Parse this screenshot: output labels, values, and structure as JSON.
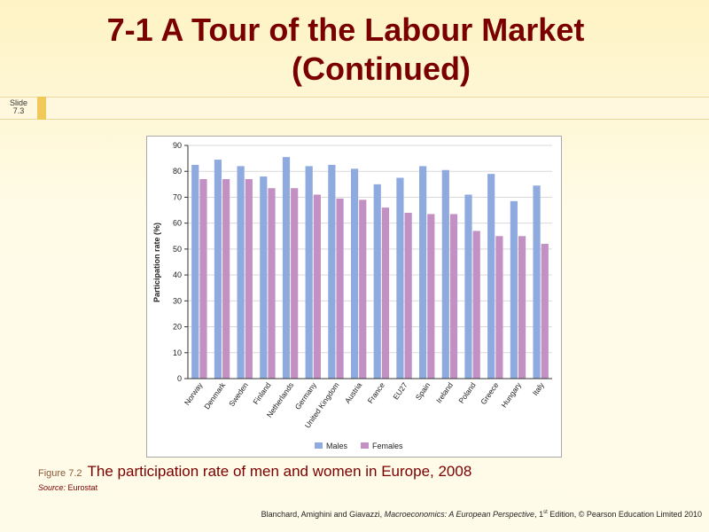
{
  "slide": {
    "title_line1": "7-1  A Tour of the Labour Market",
    "title_line2": "(Continued)",
    "slide_label": "Slide",
    "slide_number": "7.3",
    "figure_number": "Figure 7.2",
    "figure_caption": "The participation rate of men and women in Europe, 2008",
    "source_label": "Source:",
    "source_value": "Eurostat",
    "footer_before": "Blanchard, Amighini and Giavazzi, ",
    "footer_book": "Macroeconomics: A European Perspective",
    "footer_edition_num": ", 1",
    "footer_edition_sup": "st",
    "footer_after": " Edition, © Pearson Education Limited 2010"
  },
  "colors": {
    "title": "#7a0000",
    "males": "#8eaade",
    "females": "#c390c4",
    "gridline": "#d9d9d9",
    "axis": "#333333"
  },
  "chart_data": {
    "type": "bar",
    "title": "",
    "xlabel": "",
    "ylabel": "Participation rate (%)",
    "ylim": [
      0,
      90
    ],
    "yticks": [
      0,
      10,
      20,
      30,
      40,
      50,
      60,
      70,
      80,
      90
    ],
    "grid": true,
    "legend_position": "bottom",
    "categories": [
      "Norway",
      "Denmark",
      "Sweden",
      "Finland",
      "Netherlands",
      "Germany",
      "United Kingdom",
      "Austria",
      "France",
      "EU27",
      "Spain",
      "Ireland",
      "Poland",
      "Greece",
      "Hungary",
      "Italy"
    ],
    "series": [
      {
        "name": "Males",
        "values": [
          82.5,
          84.5,
          82,
          78,
          85.5,
          82,
          82.5,
          81,
          75,
          77.5,
          82,
          80.5,
          71,
          79,
          68.5,
          74.5
        ]
      },
      {
        "name": "Females",
        "values": [
          77,
          77,
          77,
          73.5,
          73.5,
          71,
          69.5,
          69,
          66,
          64,
          63.5,
          63.5,
          57,
          55,
          55,
          52
        ]
      }
    ]
  }
}
